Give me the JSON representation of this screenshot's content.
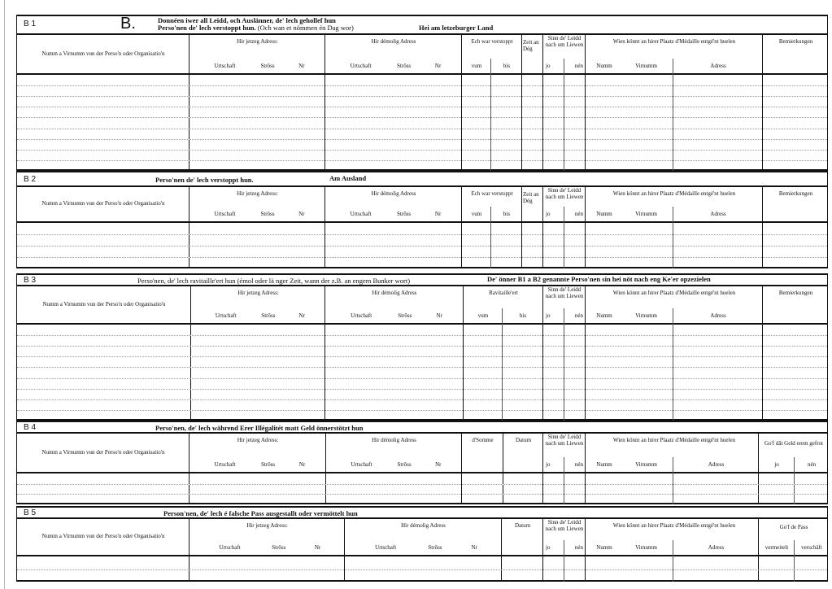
{
  "form_letter": "B.",
  "sections": [
    {
      "code": "B 1",
      "title_1": "Donnéen iwer all Leidd, och Auslänner, de' lech gehollef hun",
      "title_2a": "Perso'nen de' lech verstoppt hun.",
      "title_2b": "(Och wan et nömmen én Dag wor)",
      "title_3": "Hei am letzeburger Land",
      "name_col": "Numm a Virnumm vun der Perso'n oder Organisatio'n",
      "addr_now": "Hir jetzeg Adress:",
      "addr_then": "Hir démolig Adress",
      "urtschaft": "Urtschaft",
      "stross": "Strôss",
      "nr": "Nr",
      "urtschaft2": "Urtschaft",
      "stross2": "Strôss",
      "nr2": "Nr",
      "col_a": "Ech war verstoppt",
      "from": "vum",
      "to": "bis",
      "days": "Zeit an Dég",
      "sinn": "Sinn de' Leidd nach um Liewen",
      "yes": "jo",
      "no": "nén",
      "medal": "Wien könnt an hirer Plaatz d'Médaille entgé'nt huelen",
      "numm": "Numm",
      "virnumm": "Virnumm",
      "adress": "Adress",
      "last": "Bemierkungen"
    },
    {
      "code": "B 2",
      "title_1": "Perso'nen de' lech verstoppt hun.",
      "title_3": "Am Ausland",
      "name_col": "Numm a Virnumm vun der Perso'n oder Organisatio'n",
      "addr_now": "Hir jetzeg Adress:",
      "addr_then": "Hir démolig Adress",
      "urtschaft": "Urtschaft",
      "stross": "Strôss",
      "nr": "Nr",
      "urtschaft2": "Urtschaft",
      "stross2": "Strôss",
      "nr2": "Nr",
      "col_a": "Ech war verstoppt",
      "from": "vum",
      "to": "bis",
      "days": "Zeit an Dég",
      "sinn": "Sinn de' Leidd nach um Liewen",
      "yes": "jo",
      "no": "nén",
      "medal": "Wien könnt an hirer Plaatz d'Médaille entgé'nt huelen",
      "numm": "Numm",
      "virnumm": "Virnumm",
      "adress": "Adress",
      "last": "Bemierkungen"
    },
    {
      "code": "B 3",
      "title_1": "Perso'nen, de' lech ravitaille'ert hun (émol oder lä nger Zeit, wann der z.B. an engem Bunker wort)",
      "title_3": "De' önner B1 a B2 genannte Perso'nen sin hei nöt nach eng Ke'er opzezielen",
      "name_col": "Numm a Virnumm vun der Perso'n oder Organisatio'n",
      "addr_now": "Hir jetzeg Adress:",
      "addr_then": "Hir démolig Adress",
      "urtschaft": "Urtschaft",
      "stross": "Strôss",
      "nr": "Nr",
      "urtschaft2": "Urtschaft",
      "stross2": "Strôss",
      "nr2": "Nr",
      "col_a": "Ravitaille'ert",
      "from": "vum",
      "to": "bis",
      "sinn": "Sinn de' Leidd nach um Liewen",
      "yes": "jo",
      "no": "nén",
      "medal": "Wien könnt an hirer Plaatz d'Médaille entgé'nt huelen",
      "numm": "Numm",
      "virnumm": "Virnumm",
      "adress": "Adress",
      "last": "Bemierkungen"
    },
    {
      "code": "B 4",
      "title_1": "Perso'nen, de' lech während Erer Illégalitét matt Geld önnerstötzt hun",
      "name_col": "Numm a Virnumm vun der Perso'n oder Organisatio'n",
      "addr_now": "Hir jetzeg Adress:",
      "addr_then": "Hir démolig Adress",
      "urtschaft": "Urtschaft",
      "stross": "Strôss",
      "nr": "Nr",
      "urtschaft2": "Urtschaft",
      "stross2": "Strôss",
      "nr2": "Nr",
      "col_a": "d'Somme",
      "col_b": "Datum",
      "sinn": "Sinn de' Leidd nach um Liewen",
      "yes": "jo",
      "no": "nén",
      "medal": "Wien könnt an hirer Plaatz d'Médaille entgé'nt huelen",
      "numm": "Numm",
      "virnumm": "Virnumm",
      "adress": "Adress",
      "last": "Go'f dât Geld erem gefrot",
      "last_a": "jo",
      "last_b": "nén"
    },
    {
      "code": "B 5",
      "title_1": "Person'nen, de' lech é falsche Pass ausgestallt oder  vermöttelt hun",
      "name_col": "Numm a Virnumm vun der Perso'n oder Organisatio'n",
      "addr_now": "Hir jetzeg Adress:",
      "addr_then": "Hir démolig Adress",
      "urtschaft": "Urtschaft",
      "stross": "Strôss",
      "nr": "Nr",
      "urtschaft2": "Urtschaft",
      "stross2": "Strôss",
      "nr2": "Nr",
      "col_b": "Datum",
      "sinn": "Sinn de' Leidd nach um Liewen",
      "yes": "jo",
      "no": "nén",
      "medal": "Wien könnt an hirer Plaatz d'Médaille entgé'nt huelen",
      "numm": "Numm",
      "virnumm": "Virnumm",
      "adress": "Adress",
      "last": "Go'f de Pass",
      "last_a": "vermeitelt",
      "last_b": "verschäft"
    }
  ]
}
